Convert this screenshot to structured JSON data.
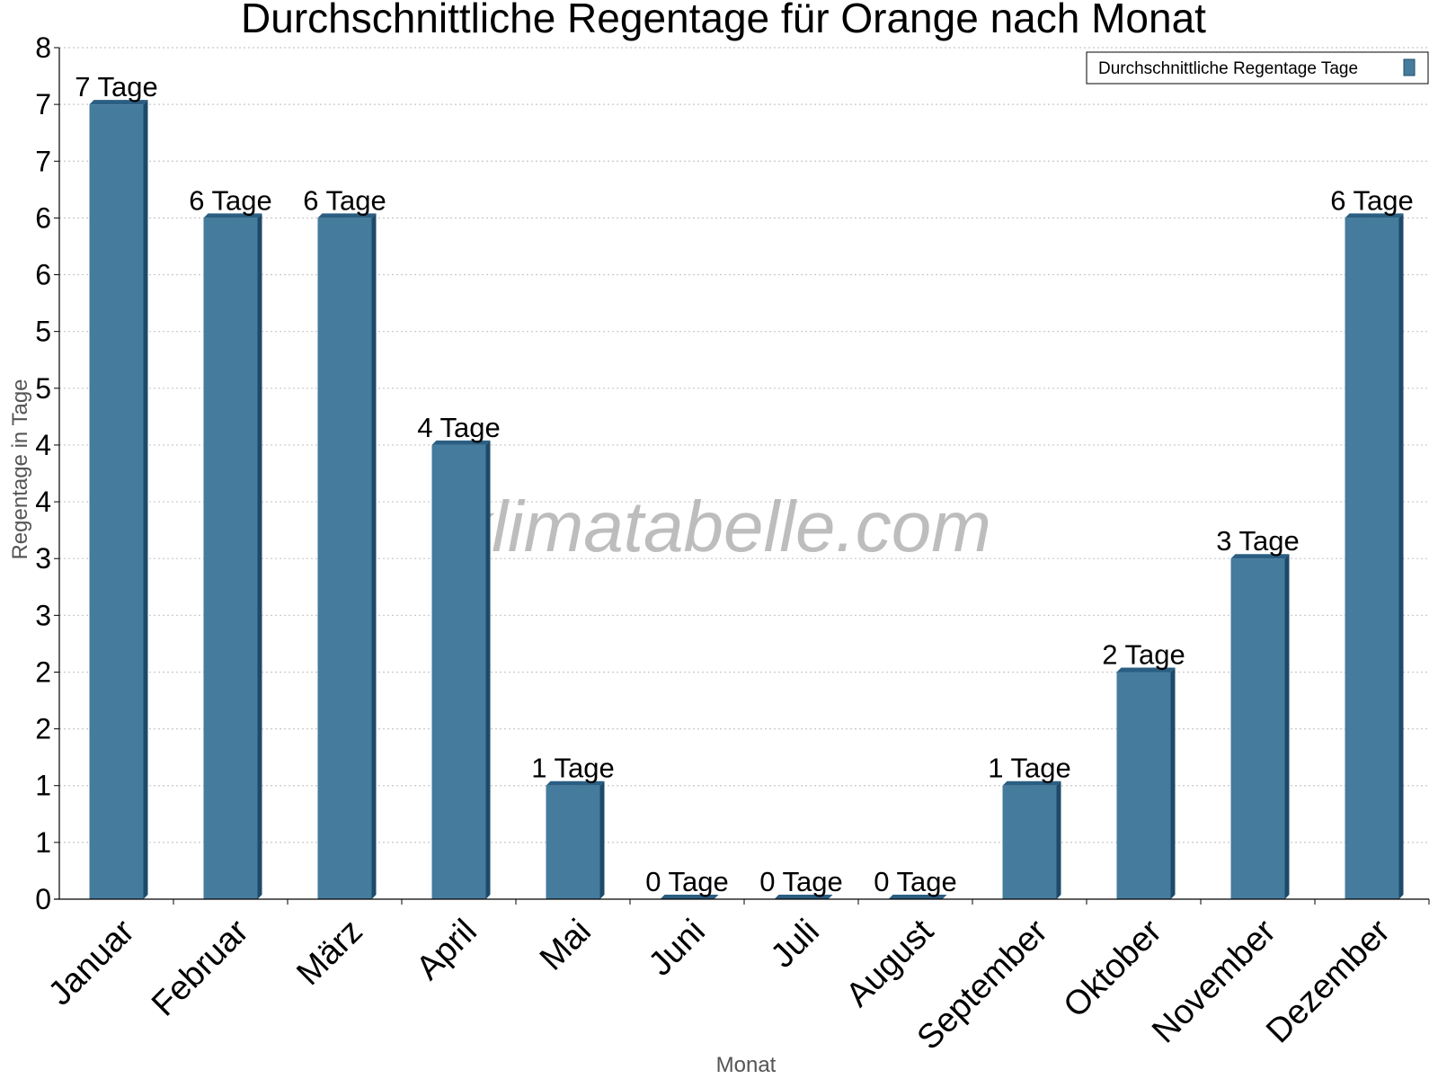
{
  "chart_data": {
    "type": "bar",
    "title": "Durchschnittliche Regentage für Orange nach Monat",
    "xlabel": "Monat",
    "ylabel": "Regentage in Tage",
    "categories": [
      "Januar",
      "Februar",
      "März",
      "April",
      "Mai",
      "Juni",
      "Juli",
      "August",
      "September",
      "Oktober",
      "November",
      "Dezember"
    ],
    "series": [
      {
        "name": "Durchschnittliche Regentage Tage",
        "values": [
          7,
          6,
          6,
          4,
          1,
          0,
          0,
          0,
          1,
          2,
          3,
          6
        ],
        "color": "#457b9d",
        "labels": [
          "7 Tage",
          "6 Tage",
          "6 Tage",
          "4 Tage",
          "1 Tage",
          "0 Tage",
          "0 Tage",
          "0 Tage",
          "1 Tage",
          "2 Tage",
          "3 Tage",
          "6 Tage"
        ]
      }
    ],
    "ylim": [
      0,
      7.5
    ],
    "y_ticks": [
      0,
      0.5,
      1,
      1.5,
      2,
      2.5,
      3,
      3.5,
      4,
      4.5,
      5,
      5.5,
      6,
      6.5,
      7,
      7.5
    ],
    "y_tick_labels": [
      "0",
      "1",
      "1",
      "2",
      "2",
      "3",
      "3",
      "4",
      "4",
      "5",
      "5",
      "6",
      "6",
      "7",
      "7",
      "8"
    ],
    "grid": true,
    "legend_position": "top-right",
    "watermark": "klimatabelle.com"
  }
}
